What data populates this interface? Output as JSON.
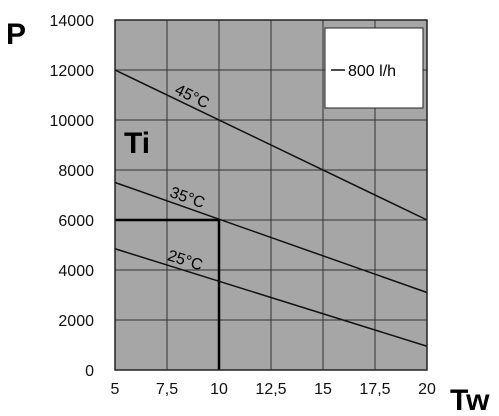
{
  "chart_data": {
    "type": "line",
    "ylabel": "P",
    "xlabel": "Tw",
    "xlim": [
      5,
      20
    ],
    "ylim": [
      0,
      14000
    ],
    "xticks": [
      "5",
      "7,5",
      "10",
      "12,5",
      "15",
      "17,5",
      "20"
    ],
    "yticks": [
      "0",
      "2000",
      "4000",
      "6000",
      "8000",
      "10000",
      "12000",
      "14000"
    ],
    "grid": true,
    "legend": {
      "position": "top-right",
      "entries": [
        "800 l/h"
      ]
    },
    "annotation": "Ti",
    "series": [
      {
        "name": "45°C",
        "x": [
          5,
          20
        ],
        "y": [
          12000,
          6000
        ]
      },
      {
        "name": "35°C",
        "x": [
          5,
          20
        ],
        "y": [
          7500,
          3100
        ]
      },
      {
        "name": "25°C",
        "x": [
          5,
          20
        ],
        "y": [
          4850,
          950
        ]
      }
    ],
    "guide": {
      "x": 10,
      "y": 6000
    }
  },
  "colors": {
    "plot_bg": "#a6a6a6",
    "grid": "#333333",
    "line": "#111111"
  }
}
